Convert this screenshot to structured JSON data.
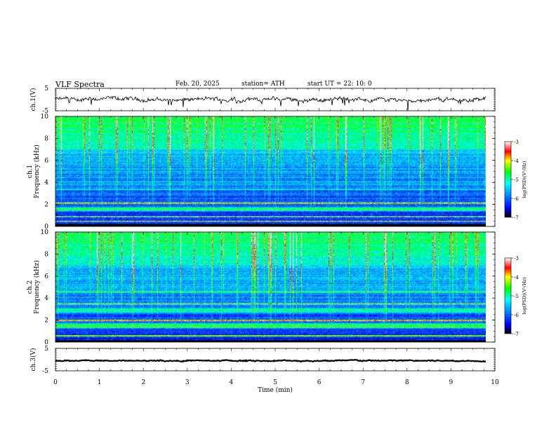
{
  "header": {
    "title": "VLF  Spectra",
    "date": "Feb. 20, 2025",
    "station": "station= ATH",
    "start_ut": "start  UT  =    22: 10: 0"
  },
  "chart_data": [
    {
      "type": "line",
      "ylabel": "ch.1(V)",
      "ylim": [
        -5,
        5
      ],
      "y_ticks": [
        "5",
        "-5"
      ],
      "xlim": [
        0,
        10
      ],
      "series": [
        {
          "mean": 0,
          "noise_amplitude": 1.2,
          "end_min": 9.8
        }
      ]
    },
    {
      "type": "heatmap",
      "ylabel": "ch.1  Frequency (kHz)",
      "ylim": [
        0,
        10
      ],
      "y_ticks": [
        "0",
        "2",
        "4",
        "6",
        "8",
        "10"
      ],
      "xlim": [
        0,
        10
      ],
      "data_end_min": 9.8,
      "colorbar": {
        "label": "log(PSD)(V²/Hz)",
        "range": [
          -7,
          -3
        ],
        "ticks": [
          "-3",
          "-4",
          "-5",
          "-6",
          "-7"
        ]
      },
      "bands_khz": [
        {
          "center": 0.1,
          "width": 0.35,
          "level": -7.5
        },
        {
          "center": 0.5,
          "width": 0.15,
          "level": -3.5
        },
        {
          "center": 0.9,
          "width": 0.15,
          "level": -4.0
        },
        {
          "center": 1.6,
          "width": 0.5,
          "level": -4.7
        },
        {
          "center": 2.15,
          "width": 0.18,
          "level": -3.7
        },
        {
          "center": 3.4,
          "width": 0.2,
          "level": -5.1
        },
        {
          "center": 4.0,
          "width": 0.5,
          "level": -5.6
        },
        {
          "center": 5.0,
          "width": 0.3,
          "level": -5.7
        }
      ]
    },
    {
      "type": "heatmap",
      "ylabel": "ch.2  Frequency (kHz)",
      "ylim": [
        0,
        10
      ],
      "y_ticks": [
        "0",
        "2",
        "4",
        "6",
        "8",
        "10"
      ],
      "xlim": [
        0,
        10
      ],
      "data_end_min": 9.8,
      "colorbar": {
        "label": "log(PSD)(V²/Hz)",
        "range": [
          -7,
          -3
        ],
        "ticks": [
          "-3",
          "-4",
          "-5",
          "-6",
          "-7"
        ]
      },
      "bands_khz": [
        {
          "center": 0.1,
          "width": 0.3,
          "level": -7.5
        },
        {
          "center": 0.6,
          "width": 0.2,
          "level": -4.0
        },
        {
          "center": 1.5,
          "width": 0.6,
          "level": -4.6
        },
        {
          "center": 2.0,
          "width": 0.2,
          "level": -3.6
        },
        {
          "center": 2.9,
          "width": 0.6,
          "level": -4.9
        },
        {
          "center": 3.5,
          "width": 0.15,
          "level": -4.0
        },
        {
          "center": 4.6,
          "width": 0.2,
          "level": -4.6
        },
        {
          "center": 5.2,
          "width": 0.4,
          "level": -5.6
        }
      ]
    },
    {
      "type": "line",
      "ylabel": "ch.3(V)",
      "ylim": [
        -5,
        5
      ],
      "y_ticks": [
        "5",
        "-5"
      ],
      "xlim": [
        0,
        10
      ],
      "xlabel": "Time  (min)",
      "x_ticks": [
        "0",
        "1",
        "2",
        "3",
        "4",
        "5",
        "6",
        "7",
        "8",
        "9",
        "10"
      ],
      "series": [
        {
          "mean": -0.5,
          "noise_amplitude": 0.3,
          "end_min": 9.8
        }
      ]
    }
  ]
}
